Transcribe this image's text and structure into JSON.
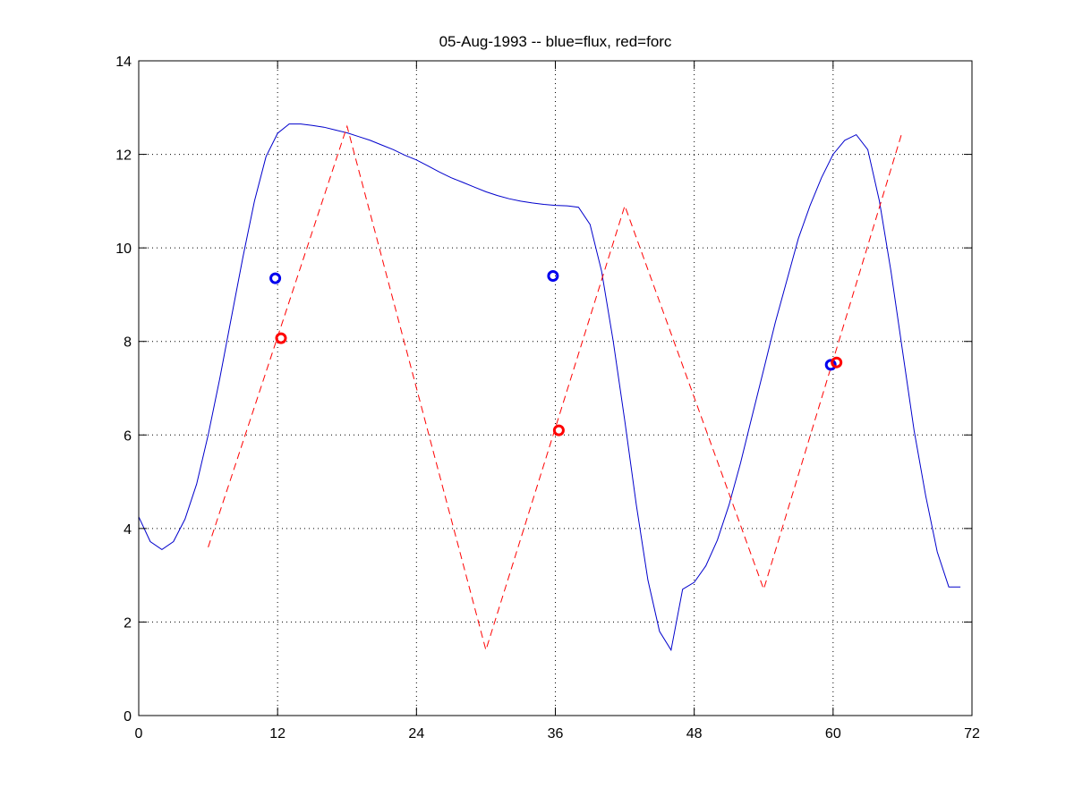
{
  "chart_data": {
    "type": "line",
    "title": "05-Aug-1993 -- blue=flux, red=forc",
    "xlabel": "",
    "ylabel": "",
    "xlim": [
      0,
      72
    ],
    "ylim": [
      0,
      14
    ],
    "xticks": [
      "0",
      "12",
      "24",
      "36",
      "48",
      "60",
      "72"
    ],
    "yticks": [
      "0",
      "2",
      "4",
      "6",
      "8",
      "10",
      "12",
      "14"
    ],
    "grid": true,
    "series": [
      {
        "color": "#0000cc",
        "style": "solid",
        "x": [
          0,
          1,
          2,
          3,
          4,
          5,
          6,
          7,
          8,
          9,
          10,
          11,
          12,
          13,
          14,
          15,
          16,
          17,
          18,
          19,
          20,
          21,
          22,
          23,
          24,
          25,
          26,
          27,
          28,
          29,
          30,
          31,
          32,
          33,
          34,
          35,
          36,
          37,
          38,
          39,
          40,
          41,
          42,
          43,
          44,
          45,
          46,
          47,
          48,
          49,
          50,
          51,
          52,
          53,
          54,
          55,
          56,
          57,
          58,
          59,
          60,
          61,
          62,
          63,
          64,
          65,
          66,
          67,
          68,
          69,
          70,
          71
        ],
        "y": [
          4.25,
          3.72,
          3.55,
          3.72,
          4.2,
          4.95,
          6.0,
          7.2,
          8.5,
          9.8,
          11.0,
          11.95,
          12.45,
          12.65,
          12.65,
          12.62,
          12.58,
          12.52,
          12.46,
          12.38,
          12.3,
          12.2,
          12.1,
          11.98,
          11.88,
          11.75,
          11.62,
          11.5,
          11.4,
          11.3,
          11.2,
          11.12,
          11.05,
          11.0,
          10.96,
          10.93,
          10.91,
          10.9,
          10.87,
          10.5,
          9.5,
          8.0,
          6.3,
          4.5,
          2.9,
          1.8,
          1.4,
          2.7,
          2.85,
          3.2,
          3.75,
          4.5,
          5.4,
          6.4,
          7.4,
          8.4,
          9.3,
          10.2,
          10.9,
          11.5,
          12.0,
          12.3,
          12.42,
          12.1,
          11.0,
          9.5,
          7.8,
          6.1,
          4.7,
          3.5,
          2.75,
          2.75
        ]
      },
      {
        "color": "#ff0000",
        "style": "dashed",
        "x": [
          6,
          18,
          30,
          42,
          54,
          66
        ],
        "y": [
          3.6,
          12.6,
          1.4,
          10.9,
          2.7,
          12.5
        ]
      }
    ],
    "markers": [
      {
        "color": "#0000ee",
        "points": [
          {
            "x": 11.8,
            "y": 9.35
          },
          {
            "x": 35.8,
            "y": 9.4
          },
          {
            "x": 59.8,
            "y": 7.5
          }
        ]
      },
      {
        "color": "#ff0000",
        "points": [
          {
            "x": 12.3,
            "y": 8.07
          },
          {
            "x": 36.3,
            "y": 6.1
          },
          {
            "x": 60.3,
            "y": 7.55
          }
        ]
      }
    ]
  }
}
